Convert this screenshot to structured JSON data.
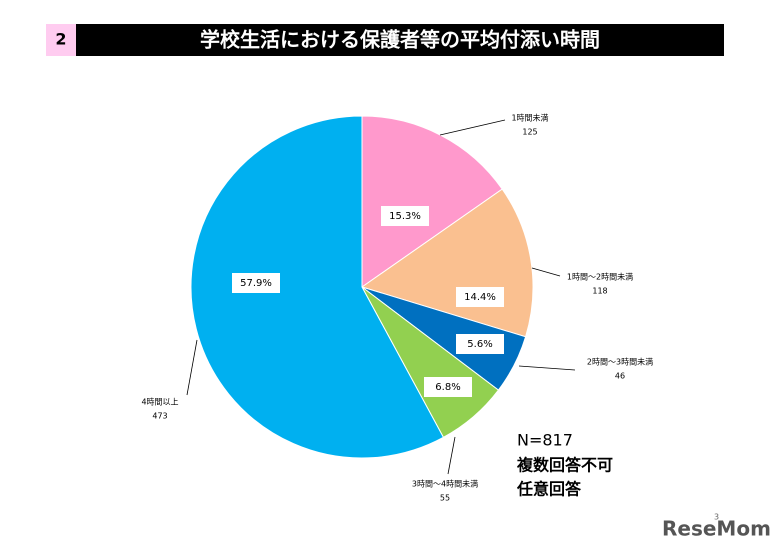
{
  "chart_data": {
    "type": "pie",
    "badge": "2",
    "title": "学校生活における保護者等の平均付添い時間",
    "categories": [
      "1時間未満",
      "1時間～2時間未満",
      "2時間～3時間未満",
      "3時間～4時間未満",
      "4時間以上"
    ],
    "values": [
      15.3,
      14.4,
      5.6,
      6.8,
      57.9
    ],
    "value_labels": [
      "15.3%",
      "14.4%",
      "5.6%",
      "6.8%",
      "57.9%"
    ],
    "counts": [
      125,
      118,
      46,
      55,
      473
    ],
    "colors": [
      "#ff99cc",
      "#fac090",
      "#0070c0",
      "#92d050",
      "#00b0f0"
    ],
    "notes": [
      "N=817",
      "複数回答不可",
      "任意回答"
    ],
    "page_number": "3",
    "logo": "ReseMom"
  }
}
